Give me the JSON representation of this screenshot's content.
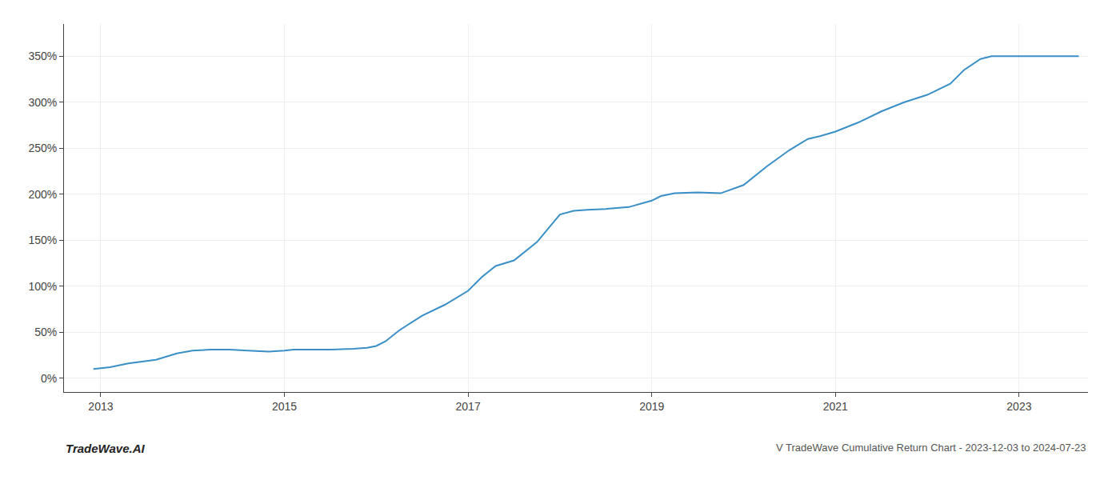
{
  "chart_data": {
    "type": "line",
    "color": "#3a8fc7",
    "grid": true,
    "annotations": [
      "TradeWave.AI",
      "V TradeWave Cumulative Return Chart - 2023-12-03 to 2024-07-23"
    ],
    "xlim": [
      2012.6,
      2023.75
    ],
    "xticks": [
      2013,
      2015,
      2017,
      2019,
      2021,
      2023
    ],
    "ylim": [
      -15,
      385
    ],
    "yticks": [
      {
        "value": 0,
        "label": "0%"
      },
      {
        "value": 50,
        "label": "50%"
      },
      {
        "value": 100,
        "label": "100%"
      },
      {
        "value": 150,
        "label": "150%"
      },
      {
        "value": 200,
        "label": "200%"
      },
      {
        "value": 250,
        "label": "250%"
      },
      {
        "value": 300,
        "label": "300%"
      },
      {
        "value": 350,
        "label": "350%"
      }
    ],
    "x": [
      2012.92,
      2013.1,
      2013.3,
      2013.6,
      2013.83,
      2014.0,
      2014.2,
      2014.4,
      2014.6,
      2014.83,
      2015.0,
      2015.1,
      2015.25,
      2015.5,
      2015.75,
      2015.9,
      2016.0,
      2016.1,
      2016.25,
      2016.5,
      2016.75,
      2017.0,
      2017.15,
      2017.3,
      2017.5,
      2017.75,
      2018.0,
      2018.15,
      2018.3,
      2018.5,
      2018.75,
      2019.0,
      2019.1,
      2019.25,
      2019.5,
      2019.75,
      2020.0,
      2020.25,
      2020.5,
      2020.7,
      2020.83,
      2021.0,
      2021.25,
      2021.5,
      2021.75,
      2022.0,
      2022.25,
      2022.4,
      2022.58,
      2022.7,
      2022.9,
      2023.1,
      2023.3,
      2023.5,
      2023.65
    ],
    "values": [
      10,
      12,
      16,
      20,
      27,
      30,
      31,
      31,
      30,
      29,
      30,
      31,
      31,
      31,
      32,
      33,
      35,
      40,
      52,
      68,
      80,
      95,
      110,
      122,
      128,
      148,
      178,
      182,
      183,
      184,
      186,
      193,
      198,
      201,
      202,
      201,
      210,
      230,
      248,
      260,
      263,
      268,
      278,
      290,
      300,
      308,
      320,
      335,
      347,
      350,
      350,
      350,
      350,
      350,
      350
    ]
  }
}
